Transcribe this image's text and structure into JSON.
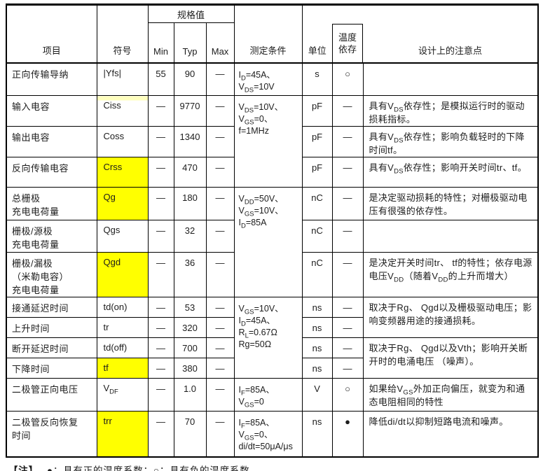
{
  "colors": {
    "highlight": "#ffff00",
    "highlight_faint": "#ffffbe",
    "border": "#000000",
    "text": "#1c1c1c"
  },
  "header": {
    "item": "项目",
    "symbol": "符号",
    "spec_group": "规格值",
    "min": "Min",
    "typ": "Typ",
    "max": "Max",
    "conditions": "测定条件",
    "unit": "单位",
    "temp_dependence": "温度\n依存",
    "design_notes": "设计上的注意点"
  },
  "rows": [
    {
      "item": "正向传输导纳",
      "symbol": "|Yfs|",
      "min": "55",
      "typ": "90",
      "max": "—",
      "cond": "I_{D}=45A、\nV_{DS}=10V",
      "unit": "s",
      "temp": "○",
      "note": ""
    },
    {
      "item": "输入电容",
      "symbol": "Ciss",
      "min": "—",
      "typ": "9770",
      "max": "—",
      "unit": "pF",
      "temp": "—",
      "note": "具有V_{DS}依存性；是模拟运行时的驱动损耗指标。"
    },
    {
      "item": "输出电容",
      "symbol": "Coss",
      "min": "—",
      "typ": "1340",
      "max": "—",
      "unit": "pF",
      "temp": "—",
      "note": "具有V_{DS}依存性；影响负载轻时的下降时间tf。"
    },
    {
      "item": "反向传输电容",
      "symbol": "Crss",
      "min": "—",
      "typ": "470",
      "max": "—",
      "unit": "pF",
      "temp": "—",
      "note": "具有V_{DS}依存性；影响开关时间tr、tf。"
    },
    {
      "item": "总栅极\n充电电荷量",
      "symbol": "Qg",
      "min": "—",
      "typ": "180",
      "max": "—",
      "unit": "nC",
      "temp": "—",
      "note": "是决定驱动损耗的特性；对栅极驱动电压有很强的依存性。"
    },
    {
      "item": "栅极/源极\n充电电荷量",
      "symbol": "Qgs",
      "min": "—",
      "typ": "32",
      "max": "—",
      "unit": "nC",
      "temp": "—",
      "note": ""
    },
    {
      "item": "栅极/漏极\n（米勒电容）\n充电电荷量",
      "symbol": "Qgd",
      "min": "—",
      "typ": "36",
      "max": "—",
      "unit": "nC",
      "temp": "—",
      "note": "是决定开关时间tr、 tf的特性；依存电源电压V_{DD}（随着V_{DD}的上升而增大）"
    },
    {
      "item": "接通延迟时间",
      "symbol": "td(on)",
      "min": "—",
      "typ": "53",
      "max": "—",
      "unit": "ns",
      "temp": "—"
    },
    {
      "item": "上升时间",
      "symbol": "tr",
      "min": "—",
      "typ": "320",
      "max": "—",
      "unit": "ns",
      "temp": "—"
    },
    {
      "item": "断开延迟时间",
      "symbol": "td(off)",
      "min": "—",
      "typ": "700",
      "max": "—",
      "unit": "ns",
      "temp": "—"
    },
    {
      "item": "下降时间",
      "symbol": "tf",
      "min": "—",
      "typ": "380",
      "max": "—",
      "unit": "ns",
      "temp": "—"
    },
    {
      "item": "二极管正向电压",
      "symbol": "V_{DF}",
      "min": "—",
      "typ": "1.0",
      "max": "—",
      "cond": "I_{F}=85A、\nV_{GS}=0",
      "unit": "V",
      "temp": "○",
      "note": "如果给V_{GS}外加正向偏压，就变为和通态电阻相同的特性"
    },
    {
      "item": "二极管反向恢复\n时间",
      "symbol": "trr",
      "min": "—",
      "typ": "70",
      "max": "—",
      "cond": "I_{F}=85A、\nV_{GS}=0、\ndi/dt=50μA/μs",
      "unit": "ns",
      "temp": "●",
      "note": "降低di/dt以抑制短路电流和噪声。"
    }
  ],
  "merged": {
    "cond_capacitance": "V_{DS}=10V、\nV_{GS}=0、\nf=1MHz",
    "cond_gate_charge": "V_{DD}=50V、\nV_{GS}=10V、\nI_{D}=85A",
    "cond_switching": "V_{GS}=10V、\nI_{D}=45A、\nR_{L}=0.67Ω\nRg=50Ω",
    "note_turn_on": "取决于Rg、 Qgd以及栅极驱动电压；影响变频器用途的接通损耗。",
    "note_turn_off": "取决于Rg、 Qgd以及Vth；影响开关断开时的电涌电压 （噪声）。"
  },
  "footnote": {
    "label": "【注】",
    "text": "●：具有正的温度系数；○：具有负的温度系数。"
  }
}
